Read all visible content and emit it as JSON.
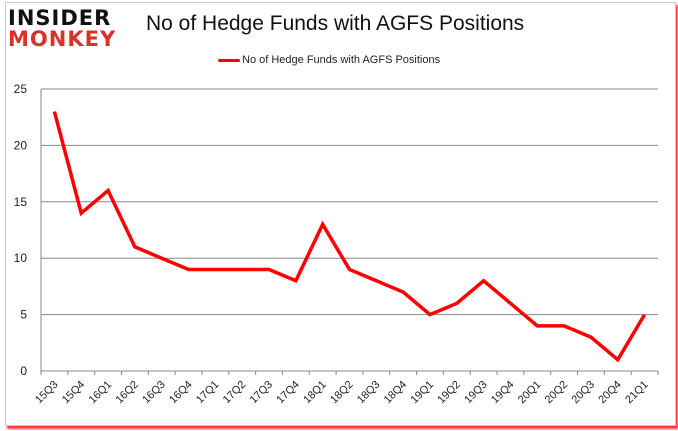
{
  "logo": {
    "line1": "INSIDER",
    "line2": "MONKEY"
  },
  "colors": {
    "series": "#ff0000",
    "grid": "#888888",
    "logo_red": "#d9322a"
  },
  "chart_data": {
    "type": "line",
    "title": "No of Hedge Funds with AGFS Positions",
    "xlabel": "",
    "ylabel": "",
    "ylim": [
      0,
      25
    ],
    "yticks": [
      0,
      5,
      10,
      15,
      20,
      25
    ],
    "grid": true,
    "legend_position": "top",
    "categories": [
      "15Q3",
      "15Q4",
      "16Q1",
      "16Q2",
      "16Q3",
      "16Q4",
      "17Q1",
      "17Q2",
      "17Q3",
      "17Q4",
      "18Q1",
      "18Q2",
      "18Q3",
      "18Q4",
      "19Q1",
      "19Q2",
      "19Q3",
      "19Q4",
      "20Q1",
      "20Q2",
      "20Q3",
      "20Q4",
      "21Q1"
    ],
    "series": [
      {
        "name": "No of Hedge Funds with AGFS Positions",
        "values": [
          23,
          14,
          16,
          11,
          10,
          9,
          9,
          9,
          9,
          8,
          13,
          9,
          8,
          7,
          5,
          6,
          8,
          6,
          4,
          4,
          3,
          1,
          5
        ]
      }
    ]
  }
}
